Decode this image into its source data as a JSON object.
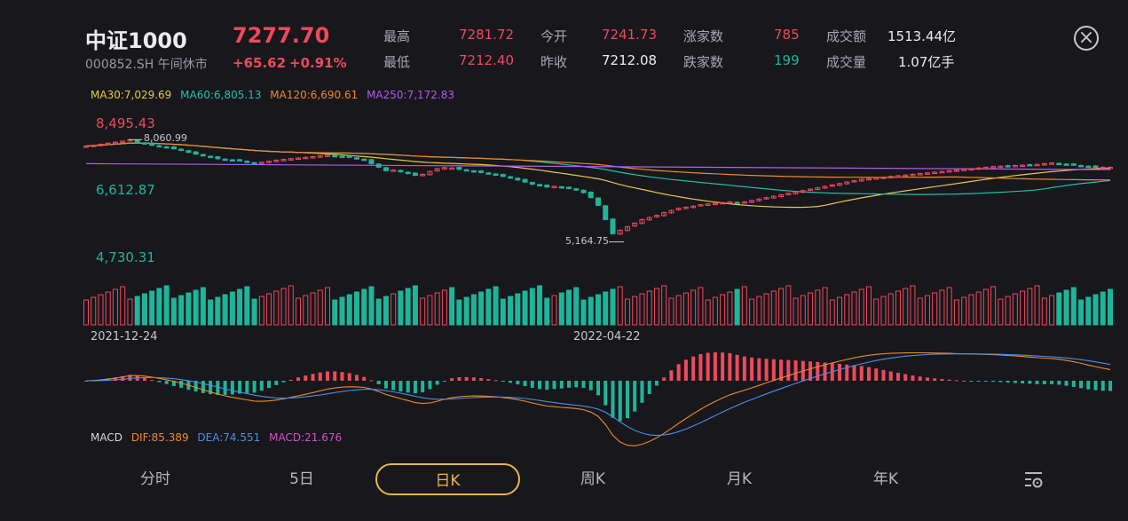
{
  "header": {
    "title": "中证1000",
    "price": "7277.70",
    "code_status": "000852.SH 午间休市",
    "change": "+65.62",
    "change_pct": "+0.91%"
  },
  "stats": [
    {
      "label": "最高",
      "value": "7281.72",
      "color": "red"
    },
    {
      "label": "今开",
      "value": "7241.73",
      "color": "red"
    },
    {
      "label": "涨家数",
      "value": "785",
      "color": "red"
    },
    {
      "label": "成交额",
      "value": "1513.44亿",
      "color": "white"
    },
    {
      "label": "最低",
      "value": "7212.40",
      "color": "red"
    },
    {
      "label": "昨收",
      "value": "7212.08",
      "color": "white"
    },
    {
      "label": "跌家数",
      "value": "199",
      "color": "green"
    },
    {
      "label": "成交量",
      "value": "1.07亿手",
      "color": "white"
    }
  ],
  "close_icon": "close-circle-icon",
  "ma_legend": [
    {
      "label": "MA30:7,029.69",
      "color": "#e8c84a"
    },
    {
      "label": "MA60:6,805.13",
      "color": "#22c1a6"
    },
    {
      "label": "MA120:6,690.61",
      "color": "#f0892e"
    },
    {
      "label": "MA250:7,172.83",
      "color": "#b45ce8"
    }
  ],
  "price_axis": {
    "high": "8,495.43",
    "mid": "6,612.87",
    "low": "4,730.31"
  },
  "annotations": {
    "max_marker": "8,060.99",
    "min_marker": "5,164.75"
  },
  "dates": {
    "start": "2021-12-24",
    "mid": "2022-04-22"
  },
  "macd_legend": [
    {
      "label": "MACD",
      "color": "#d7d7dc"
    },
    {
      "label": "DIF:85.389",
      "color": "#f0892e"
    },
    {
      "label": "DEA:74.551",
      "color": "#4a8fe8"
    },
    {
      "label": "MACD:21.676",
      "color": "#d94fc8"
    }
  ],
  "tabs": [
    {
      "label": "分时",
      "active": false
    },
    {
      "label": "5日",
      "active": false
    },
    {
      "label": "日K",
      "active": true
    },
    {
      "label": "周K",
      "active": false
    },
    {
      "label": "月K",
      "active": false
    },
    {
      "label": "年K",
      "active": false
    }
  ],
  "settings_icon": "chart-settings-icon",
  "colors": {
    "up": "#ef4a5b",
    "down": "#1fb59a",
    "background": "#17171c",
    "accent": "#e8b64a"
  },
  "chart_data": {
    "type": "candlestick",
    "title": "",
    "y_axis_labels": [
      "8,495.43",
      "6,612.87",
      "4,730.31"
    ],
    "ylim": [
      4730.31,
      8495.43
    ],
    "x_labels": [
      "2021-12-24",
      "2022-04-22"
    ],
    "close_series": [
      7880,
      7900,
      7930,
      7960,
      7990,
      8020,
      8060,
      7980,
      7950,
      7900,
      7870,
      7840,
      7800,
      7760,
      7700,
      7650,
      7600,
      7560,
      7520,
      7500,
      7480,
      7460,
      7420,
      7380,
      7420,
      7450,
      7480,
      7500,
      7520,
      7540,
      7560,
      7580,
      7600,
      7620,
      7600,
      7580,
      7560,
      7520,
      7480,
      7380,
      7280,
      7180,
      7200,
      7150,
      7100,
      7050,
      7080,
      7160,
      7240,
      7270,
      7260,
      7220,
      7190,
      7160,
      7130,
      7100,
      7060,
      7020,
      6980,
      6920,
      6860,
      6800,
      6760,
      6720,
      6740,
      6700,
      6680,
      6640,
      6560,
      6420,
      6200,
      5800,
      5400,
      5500,
      5600,
      5700,
      5800,
      5860,
      5920,
      6000,
      6060,
      6120,
      6150,
      6180,
      6220,
      6240,
      6260,
      6280,
      6300,
      6280,
      6300,
      6340,
      6380,
      6420,
      6460,
      6500,
      6540,
      6580,
      6620,
      6660,
      6700,
      6740,
      6780,
      6820,
      6860,
      6900,
      6940,
      6960,
      6980,
      7000,
      7020,
      7040,
      7060,
      7080,
      7100,
      7120,
      7140,
      7160,
      7180,
      7200,
      7220,
      7240,
      7260,
      7280,
      7300,
      7310,
      7320,
      7330,
      7340,
      7350,
      7360,
      7380,
      7400,
      7380,
      7360,
      7340,
      7320,
      7300,
      7290,
      7280,
      7277.7
    ],
    "ma_series": [
      {
        "name": "MA30",
        "value": 7029.69
      },
      {
        "name": "MA60",
        "value": 6805.13
      },
      {
        "name": "MA120",
        "value": 6690.61
      },
      {
        "name": "MA250",
        "value": 7172.83
      }
    ],
    "macd": {
      "DIF": 85.389,
      "DEA": 74.551,
      "MACD": 21.676
    }
  }
}
